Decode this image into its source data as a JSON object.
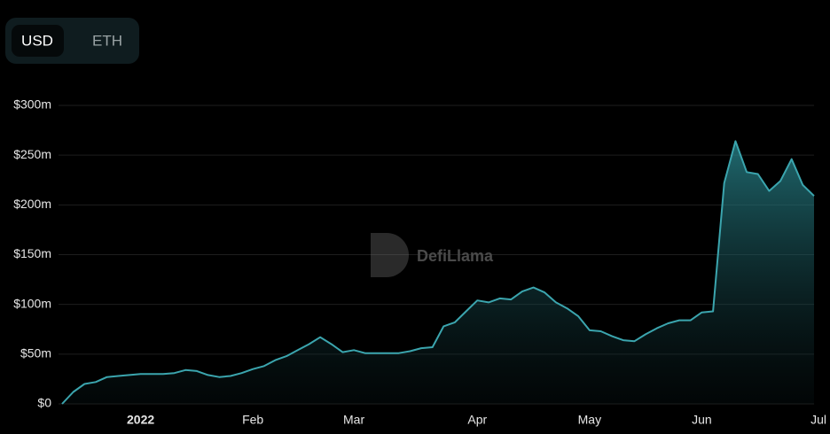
{
  "toggle": {
    "options": [
      "USD",
      "ETH"
    ],
    "active": "USD"
  },
  "watermark": "DefiLlama",
  "chart_data": {
    "type": "area",
    "color": "#3ba5ae",
    "grid": true,
    "ylim": [
      0,
      300
    ],
    "yticks": [
      {
        "value": 0,
        "label": "$0"
      },
      {
        "value": 50,
        "label": "$50m"
      },
      {
        "value": 100,
        "label": "$100m"
      },
      {
        "value": 150,
        "label": "$150m"
      },
      {
        "value": 200,
        "label": "$200m"
      },
      {
        "value": 250,
        "label": "$250m"
      },
      {
        "value": 300,
        "label": "$300m"
      }
    ],
    "categories": [
      null,
      null,
      null,
      null,
      null,
      null,
      null,
      "2022",
      null,
      null,
      null,
      null,
      null,
      null,
      null,
      null,
      null,
      "Feb",
      null,
      null,
      null,
      null,
      null,
      null,
      null,
      null,
      "Mar",
      null,
      null,
      null,
      null,
      null,
      null,
      null,
      null,
      null,
      null,
      "Apr",
      null,
      null,
      null,
      null,
      null,
      null,
      null,
      null,
      null,
      "May",
      null,
      null,
      null,
      null,
      null,
      null,
      null,
      null,
      null,
      "Jun",
      null,
      null,
      null,
      null,
      null,
      null,
      null,
      null,
      null,
      "Jul"
    ],
    "values": [
      0,
      12,
      20,
      22,
      27,
      28,
      29,
      30,
      30,
      30,
      31,
      34,
      33,
      29,
      27,
      28,
      31,
      35,
      38,
      44,
      48,
      54,
      60,
      67,
      60,
      52,
      54,
      51,
      51,
      51,
      51,
      53,
      56,
      57,
      78,
      82,
      93,
      104,
      102,
      106,
      105,
      113,
      117,
      112,
      102,
      96,
      88,
      74,
      73,
      68,
      64,
      63,
      70,
      76,
      81,
      84,
      84,
      92,
      93,
      222,
      264,
      233,
      231,
      214,
      224,
      246,
      220,
      209
    ]
  }
}
